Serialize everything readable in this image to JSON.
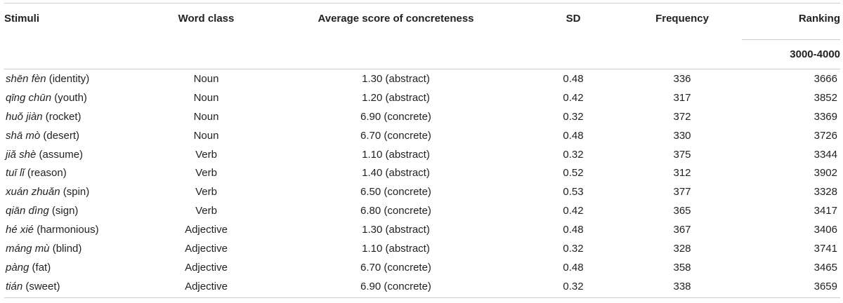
{
  "table": {
    "headers": {
      "stimuli": "Stimuli",
      "word_class": "Word class",
      "avg_score": "Average score of concreteness",
      "sd": "SD",
      "frequency": "Frequency",
      "ranking": "Ranking",
      "ranking_sub": "3000-4000"
    },
    "rows": [
      {
        "pinyin": "shēn fèn",
        "gloss": " (identity)",
        "word_class": "Noun",
        "avg": "1.30 (abstract)",
        "sd": "0.48",
        "freq": "336",
        "rank": "3666"
      },
      {
        "pinyin": "qīng chūn",
        "gloss": " (youth)",
        "word_class": "Noun",
        "avg": "1.20 (abstract)",
        "sd": "0.42",
        "freq": "317",
        "rank": "3852"
      },
      {
        "pinyin": "huǒ jiàn",
        "gloss": " (rocket)",
        "word_class": "Noun",
        "avg": "6.90 (concrete)",
        "sd": "0.32",
        "freq": "372",
        "rank": "3369"
      },
      {
        "pinyin": "shā mò",
        "gloss": " (desert)",
        "word_class": "Noun",
        "avg": "6.70 (concrete)",
        "sd": "0.48",
        "freq": "330",
        "rank": "3726"
      },
      {
        "pinyin": "jiǎ shè",
        "gloss": " (assume)",
        "word_class": "Verb",
        "avg": "1.10 (abstract)",
        "sd": "0.32",
        "freq": "375",
        "rank": "3344"
      },
      {
        "pinyin": "tuī lǐ",
        "gloss": " (reason)",
        "word_class": "Verb",
        "avg": "1.40 (abstract)",
        "sd": "0.52",
        "freq": "312",
        "rank": "3902"
      },
      {
        "pinyin": "xuán zhuǎn",
        "gloss": " (spin)",
        "word_class": "Verb",
        "avg": "6.50 (concrete)",
        "sd": "0.53",
        "freq": "377",
        "rank": "3328"
      },
      {
        "pinyin": "qiān dìng",
        "gloss": " (sign)",
        "word_class": "Verb",
        "avg": "6.80 (concrete)",
        "sd": "0.42",
        "freq": "365",
        "rank": "3417"
      },
      {
        "pinyin": "hé xié",
        "gloss": " (harmonious)",
        "word_class": "Adjective",
        "avg": "1.30 (abstract)",
        "sd": "0.48",
        "freq": "367",
        "rank": "3406"
      },
      {
        "pinyin": "máng mù",
        "gloss": " (blind)",
        "word_class": "Adjective",
        "avg": "1.10 (abstract)",
        "sd": "0.32",
        "freq": "328",
        "rank": "3741"
      },
      {
        "pinyin": "pàng",
        "gloss": " (fat)",
        "word_class": "Adjective",
        "avg": "6.70 (concrete)",
        "sd": "0.48",
        "freq": "358",
        "rank": "3465"
      },
      {
        "pinyin": "tián",
        "gloss": " (sweet)",
        "word_class": "Adjective",
        "avg": "6.90 (concrete)",
        "sd": "0.32",
        "freq": "338",
        "rank": "3659"
      }
    ]
  }
}
